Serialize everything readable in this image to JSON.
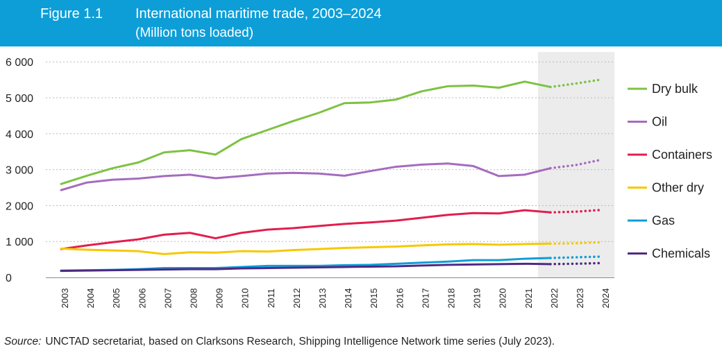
{
  "figure": {
    "label": "Figure 1.1",
    "title": "International maritime trade, 2003–2024",
    "subtitle": "(Million tons loaded)"
  },
  "source": {
    "label": "Source:",
    "text": "UNCTAD secretariat, based on Clarksons Research, Shipping Intelligence Network time series (July 2023)."
  },
  "colors": {
    "header_bg": "#0d9ed8",
    "forecast_shade": "#ececec",
    "grid": "#b7b7b7"
  },
  "chart_data": {
    "type": "line",
    "x": [
      2003,
      2004,
      2005,
      2006,
      2007,
      2008,
      2009,
      2010,
      2011,
      2012,
      2013,
      2014,
      2015,
      2016,
      2017,
      2018,
      2019,
      2020,
      2021,
      2022,
      2023,
      2024
    ],
    "ylim": [
      0,
      6000
    ],
    "yticks": [
      0,
      1000,
      2000,
      3000,
      4000,
      5000,
      6000
    ],
    "ytick_labels": [
      "0",
      "1 000",
      "2 000",
      "3 000",
      "4 000",
      "5 000",
      "6 000"
    ],
    "grid": "horizontal dotted",
    "legend_position": "right",
    "forecast_from": 2022,
    "series": [
      {
        "name": "Dry bulk",
        "color": "#7dc242",
        "values": [
          2600,
          2830,
          3040,
          3200,
          3480,
          3540,
          3420,
          3850,
          4100,
          4350,
          4580,
          4850,
          4870,
          4950,
          5180,
          5320,
          5340,
          5280,
          5450,
          5300,
          5400,
          5510
        ]
      },
      {
        "name": "Oil",
        "color": "#a46cbe",
        "values": [
          2430,
          2640,
          2720,
          2750,
          2820,
          2860,
          2760,
          2820,
          2890,
          2910,
          2890,
          2830,
          2960,
          3080,
          3140,
          3170,
          3100,
          2820,
          2860,
          3040,
          3130,
          3280
        ]
      },
      {
        "name": "Containers",
        "color": "#e31d4e",
        "values": [
          790,
          890,
          980,
          1060,
          1190,
          1240,
          1090,
          1240,
          1330,
          1370,
          1430,
          1490,
          1530,
          1580,
          1660,
          1740,
          1790,
          1780,
          1870,
          1810,
          1830,
          1880
        ]
      },
      {
        "name": "Other dry",
        "color": "#f7c800",
        "values": [
          800,
          770,
          750,
          730,
          650,
          700,
          690,
          730,
          720,
          760,
          790,
          820,
          840,
          860,
          890,
          920,
          930,
          910,
          930,
          940,
          950,
          980
        ]
      },
      {
        "name": "Gas",
        "color": "#0f9dd7",
        "values": [
          190,
          200,
          210,
          230,
          260,
          260,
          260,
          290,
          320,
          320,
          320,
          340,
          350,
          380,
          410,
          440,
          480,
          480,
          520,
          540,
          560,
          580
        ]
      },
      {
        "name": "Chemicals",
        "color": "#4e2a84",
        "values": [
          180,
          190,
          200,
          210,
          220,
          230,
          230,
          250,
          260,
          270,
          280,
          290,
          300,
          310,
          330,
          350,
          360,
          370,
          380,
          370,
          380,
          400
        ]
      }
    ]
  }
}
